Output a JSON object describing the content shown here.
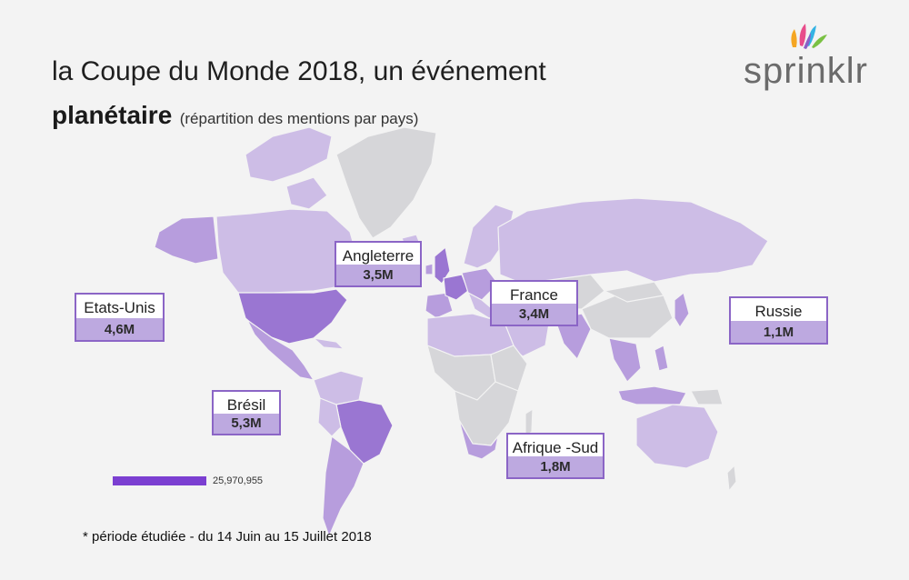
{
  "title": {
    "line1": "la Coupe du Monde 2018, un événement",
    "bold": "planétaire",
    "subtitle": "(répartition des mentions par pays)"
  },
  "logo": {
    "text": "sprinklr",
    "petal_colors": [
      "#f5a623",
      "#e84c8b",
      "#34b3e4",
      "#7ac143",
      "#8b5fc6"
    ]
  },
  "colors": {
    "background": "#f3f3f3",
    "land_default": "#d6d6d9",
    "land_low": "#cdbde6",
    "land_mid": "#b79ddd",
    "land_high": "#9a76d2",
    "border": "#8b65c6",
    "value_fill": "#bda9e0"
  },
  "callouts": [
    {
      "id": "usa",
      "name": "Etats-Unis",
      "value": "4,6M"
    },
    {
      "id": "england",
      "name": "Angleterre",
      "value": "3,5M"
    },
    {
      "id": "france",
      "name": "France",
      "value": "3,4M"
    },
    {
      "id": "russia",
      "name": "Russie",
      "value": "1,1M"
    },
    {
      "id": "brazil",
      "name": "Brésil",
      "value": "5,3M"
    },
    {
      "id": "south-africa",
      "name": "Afrique -Sud",
      "value": "1,8M"
    }
  ],
  "legend": {
    "max_label": "25,970,955"
  },
  "footnote": "* période étudiée - du 14 Juin au 15 Juillet 2018"
}
